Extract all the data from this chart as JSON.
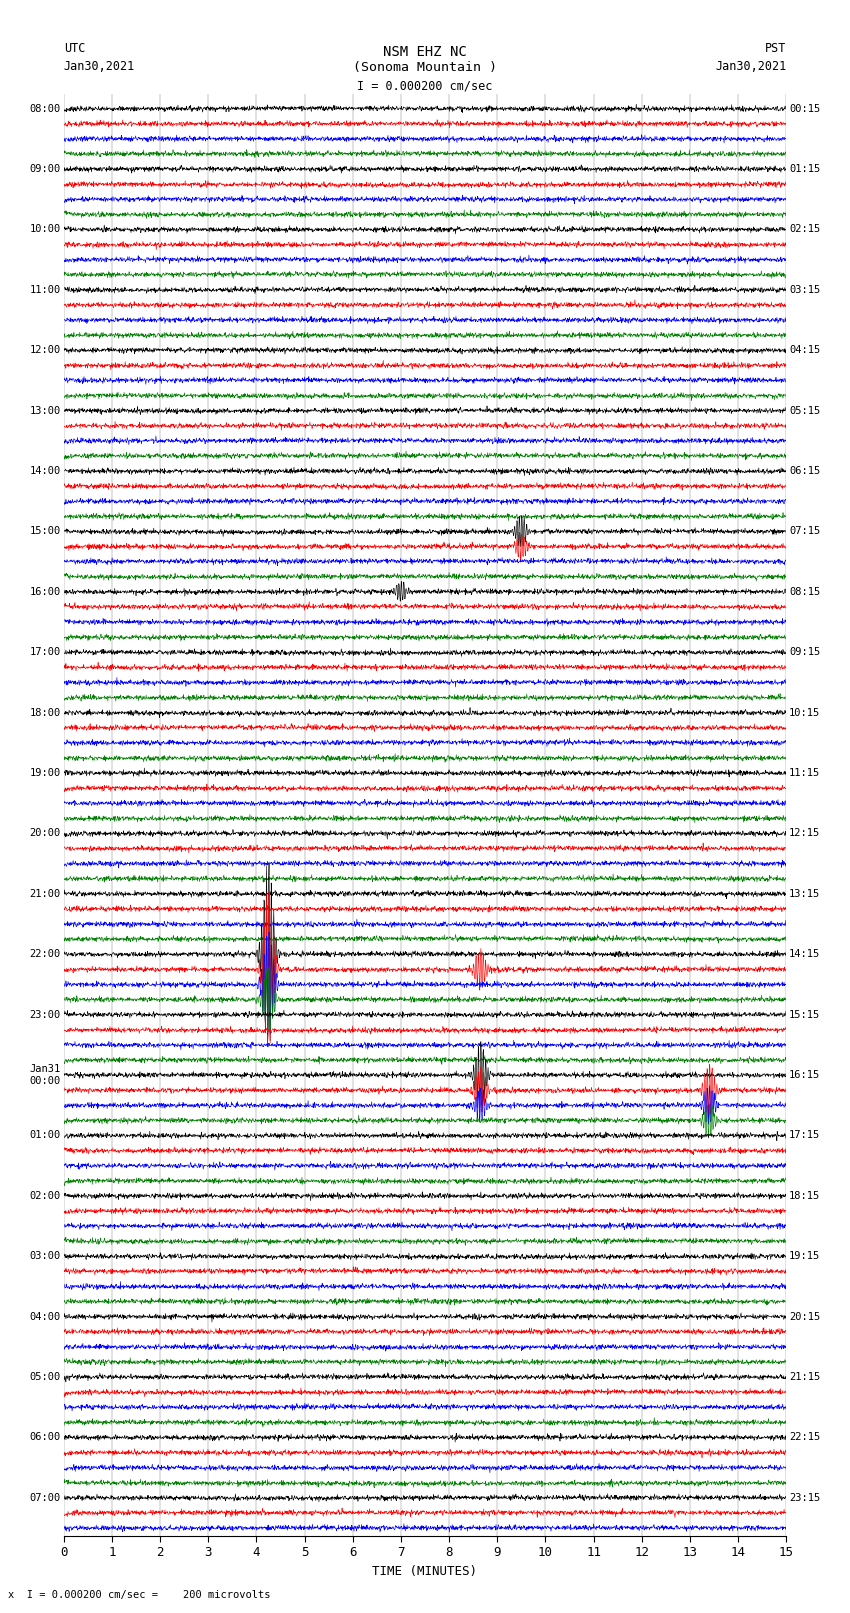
{
  "title_line1": "NSM EHZ NC",
  "title_line2": "(Sonoma Mountain )",
  "title_line3": "I = 0.000200 cm/sec",
  "left_header_line1": "UTC",
  "left_header_line2": "Jan30,2021",
  "right_header_line1": "PST",
  "right_header_line2": "Jan30,2021",
  "xlabel": "TIME (MINUTES)",
  "footer": "x  I = 0.000200 cm/sec =    200 microvolts",
  "utc_labels": [
    "08:00",
    "",
    "",
    "",
    "09:00",
    "",
    "",
    "",
    "10:00",
    "",
    "",
    "",
    "11:00",
    "",
    "",
    "",
    "12:00",
    "",
    "",
    "",
    "13:00",
    "",
    "",
    "",
    "14:00",
    "",
    "",
    "",
    "15:00",
    "",
    "",
    "",
    "16:00",
    "",
    "",
    "",
    "17:00",
    "",
    "",
    "",
    "18:00",
    "",
    "",
    "",
    "19:00",
    "",
    "",
    "",
    "20:00",
    "",
    "",
    "",
    "21:00",
    "",
    "",
    "",
    "22:00",
    "",
    "",
    "",
    "23:00",
    "",
    "",
    "",
    "Jan31\n00:00",
    "",
    "",
    "",
    "01:00",
    "",
    "",
    "",
    "02:00",
    "",
    "",
    "",
    "03:00",
    "",
    "",
    "",
    "04:00",
    "",
    "",
    "",
    "05:00",
    "",
    "",
    "",
    "06:00",
    "",
    "",
    "",
    "07:00",
    "",
    ""
  ],
  "pst_labels": [
    "00:15",
    "",
    "",
    "",
    "01:15",
    "",
    "",
    "",
    "02:15",
    "",
    "",
    "",
    "03:15",
    "",
    "",
    "",
    "04:15",
    "",
    "",
    "",
    "05:15",
    "",
    "",
    "",
    "06:15",
    "",
    "",
    "",
    "07:15",
    "",
    "",
    "",
    "08:15",
    "",
    "",
    "",
    "09:15",
    "",
    "",
    "",
    "10:15",
    "",
    "",
    "",
    "11:15",
    "",
    "",
    "",
    "12:15",
    "",
    "",
    "",
    "13:15",
    "",
    "",
    "",
    "14:15",
    "",
    "",
    "",
    "15:15",
    "",
    "",
    "",
    "16:15",
    "",
    "",
    "",
    "17:15",
    "",
    "",
    "",
    "18:15",
    "",
    "",
    "",
    "19:15",
    "",
    "",
    "",
    "20:15",
    "",
    "",
    "",
    "21:15",
    "",
    "",
    "",
    "22:15",
    "",
    "",
    "",
    "23:15",
    "",
    ""
  ],
  "trace_colors": [
    "black",
    "red",
    "blue",
    "green"
  ],
  "n_traces": 95,
  "x_min": 0,
  "x_max": 15,
  "bg_color": "white",
  "noise_amp": 0.18,
  "event_groups": [
    {
      "traces": [
        56,
        57,
        58,
        59
      ],
      "x": 4.25,
      "amps": [
        14.0,
        12.0,
        8.0,
        5.0
      ],
      "color": "blue"
    },
    {
      "traces": [
        57
      ],
      "x": 8.65,
      "amps": [
        3.0
      ],
      "color": "blue"
    },
    {
      "traces": [
        64,
        65,
        66
      ],
      "x": 8.65,
      "amps": [
        5.0,
        3.5,
        2.5
      ],
      "color": "red"
    },
    {
      "traces": [
        65,
        66,
        67
      ],
      "x": 13.4,
      "amps": [
        4.0,
        3.0,
        2.5
      ],
      "color": "red"
    },
    {
      "traces": [
        28,
        29
      ],
      "x": 9.5,
      "amps": [
        2.5,
        2.0
      ],
      "color": "red"
    },
    {
      "traces": [
        32
      ],
      "x": 7.0,
      "amps": [
        1.5
      ],
      "color": "black"
    }
  ]
}
